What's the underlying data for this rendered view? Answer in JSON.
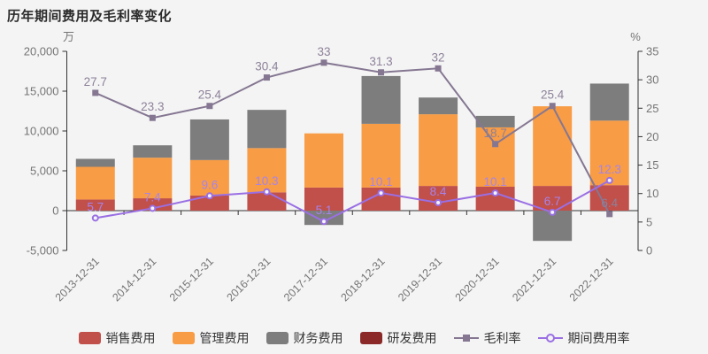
{
  "title": "历年期间费用及毛利率变化",
  "chart_data": {
    "type": "bar",
    "subtype": "stacked-bar-with-lines",
    "categories": [
      "2013-12-31",
      "2014-12-31",
      "2015-12-31",
      "2016-12-31",
      "2017-12-31",
      "2018-12-31",
      "2019-12-31",
      "2020-12-31",
      "2021-12-31",
      "2022-12-31"
    ],
    "bar_series": [
      {
        "name": "销售费用",
        "color": "#c14f4a",
        "values": [
          1400,
          1550,
          1900,
          2300,
          2900,
          2900,
          3100,
          3000,
          3100,
          3200
        ]
      },
      {
        "name": "管理费用",
        "color": "#f89c45",
        "values": [
          4100,
          5100,
          4450,
          5550,
          6800,
          8000,
          9000,
          7450,
          10000,
          8100
        ]
      },
      {
        "name": "财务费用",
        "color": "#7d7d7d",
        "values": [
          1000,
          1550,
          5100,
          4800,
          -1800,
          6000,
          2100,
          1450,
          -3800,
          4650
        ]
      },
      {
        "name": "研发费用",
        "color": "#8b2929",
        "values": [
          0,
          0,
          0,
          0,
          0,
          0,
          0,
          0,
          0,
          0
        ]
      }
    ],
    "line_series": [
      {
        "name": "毛利率",
        "color": "#857792",
        "label_color": "#8d8199",
        "marker": "square",
        "values": [
          27.7,
          23.3,
          25.4,
          30.4,
          33,
          31.3,
          32,
          18.7,
          25.4,
          6.4
        ]
      },
      {
        "name": "期间费用率",
        "color": "#9a6fe4",
        "label_color": "#a584ec",
        "marker": "circle-hollow",
        "values": [
          5.7,
          7.4,
          9.6,
          10.3,
          5.1,
          10.1,
          8.4,
          10.1,
          6.7,
          12.3
        ]
      }
    ],
    "left_axis": {
      "unit": "万",
      "min": -5000,
      "max": 20000,
      "step": 5000,
      "tick_labels": [
        "-5,000",
        "0",
        "5,000",
        "10,000",
        "15,000",
        "20,000"
      ]
    },
    "right_axis": {
      "unit": "%",
      "min": 0,
      "max": 35,
      "step": 5,
      "tick_labels": [
        "0",
        "5",
        "10",
        "15",
        "20",
        "25",
        "30",
        "35"
      ]
    },
    "grid": false,
    "legend_position": "bottom"
  },
  "style": {
    "background": "#f4f4f4",
    "axis_line_color": "#333333",
    "tick_label_color": "#757575"
  }
}
